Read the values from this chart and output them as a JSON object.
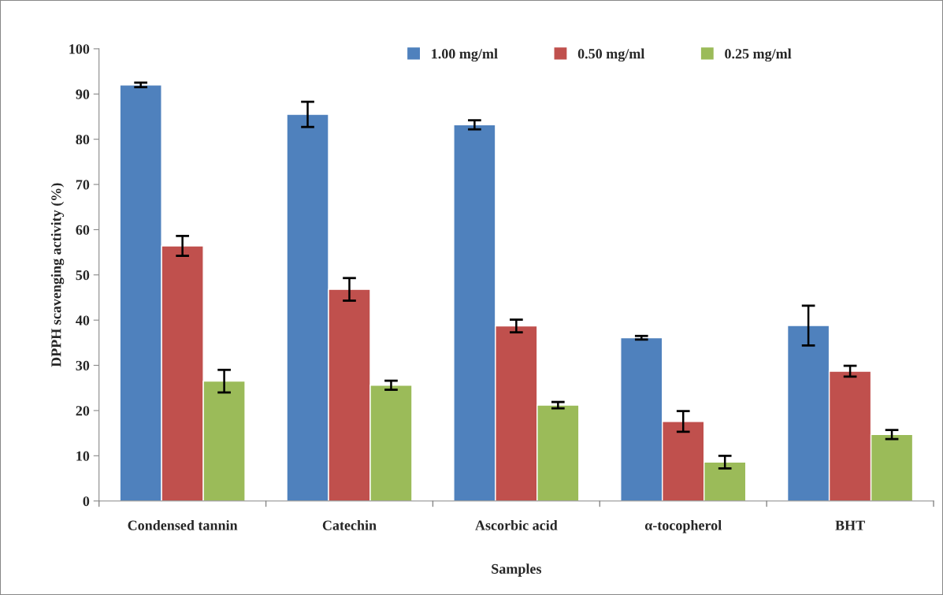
{
  "chart_data": {
    "type": "bar",
    "xlabel": "Samples",
    "ylabel": "DPPH scavenging activity (%)",
    "categories": [
      "Condensed tannin",
      "Catechin",
      "Ascorbic acid",
      "α-tocopherol",
      "BHT"
    ],
    "series": [
      {
        "name": "1.00 mg/ml",
        "color": "#4f81bd",
        "values": [
          92,
          85.5,
          83.2,
          36.1,
          38.8
        ],
        "errors": [
          0.5,
          2.8,
          1,
          0.4,
          4.4
        ]
      },
      {
        "name": "0.50 mg/ml",
        "color": "#c0504d",
        "values": [
          56.4,
          46.8,
          38.7,
          17.6,
          28.7
        ],
        "errors": [
          2.2,
          2.5,
          1.4,
          2.3,
          1.2
        ]
      },
      {
        "name": "0.25 mg/ml",
        "color": "#9bbb59",
        "values": [
          26.5,
          25.6,
          21.2,
          8.6,
          14.7
        ],
        "errors": [
          2.5,
          1,
          0.7,
          1.4,
          1
        ]
      }
    ],
    "ylim": [
      0,
      100
    ],
    "yticks": [
      0,
      10,
      20,
      30,
      40,
      50,
      60,
      70,
      80,
      90,
      100
    ],
    "grid": false,
    "legend": "top"
  }
}
